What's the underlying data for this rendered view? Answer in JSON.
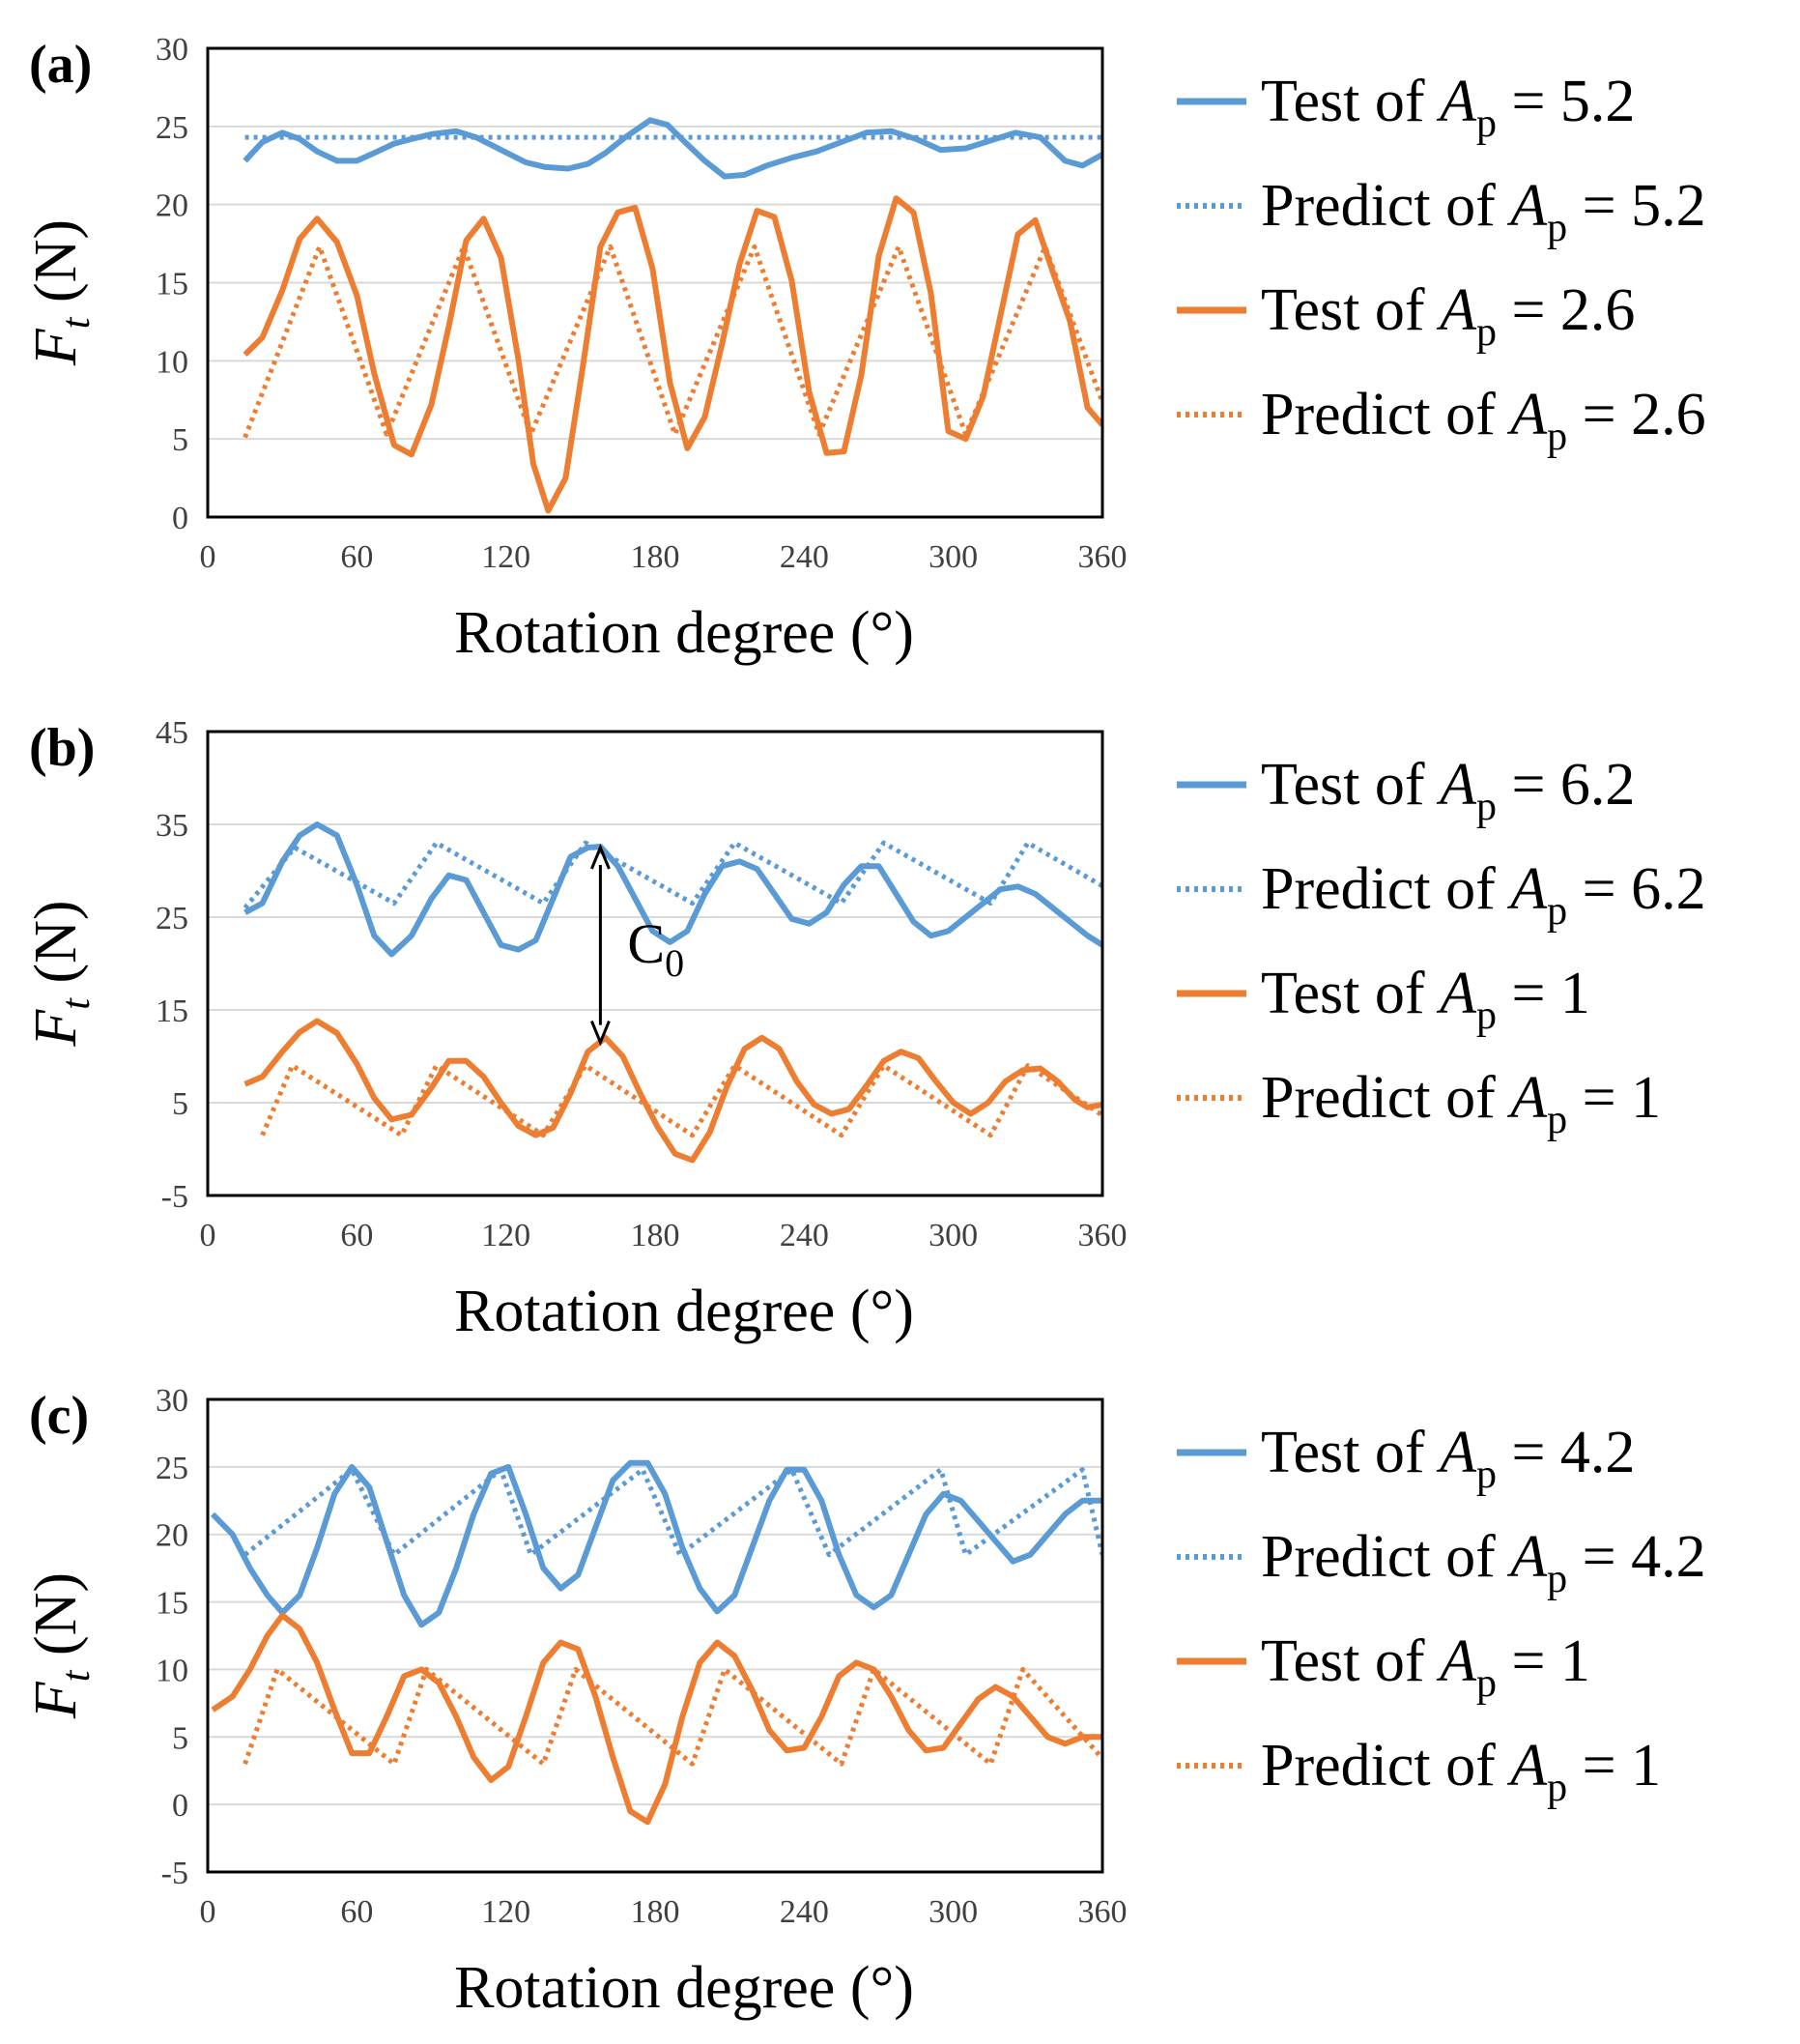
{
  "colors": {
    "blue": "#5B9BD5",
    "orange": "#ED7D31",
    "grid": "#d9d9d9",
    "frame": "#000000"
  },
  "chart_data": [
    {
      "type": "line",
      "panel_label": "(a)",
      "xlabel": "Rotation degree (°)",
      "ylabel_main": "F",
      "ylabel_sub": "t",
      "ylabel_unit": "(N)",
      "xlim": [
        0,
        360
      ],
      "ylim": [
        0,
        30
      ],
      "xticks": [
        0,
        60,
        120,
        180,
        240,
        300,
        360
      ],
      "yticks": [
        0,
        5,
        10,
        15,
        20,
        25,
        30
      ],
      "grid": "horizontal",
      "legend_position": "right",
      "series": [
        {
          "name_prefix": "Test of ",
          "name_var": "A",
          "name_sub": "p",
          "name_suffix": " = 5.2",
          "color": "#5B9BD5",
          "style": "solid",
          "x": [
            15,
            22,
            30,
            37,
            44,
            52,
            60,
            67,
            75,
            82,
            90,
            100,
            108,
            118,
            128,
            136,
            145,
            153,
            160,
            168,
            178,
            185,
            192,
            200,
            208,
            216,
            225,
            235,
            245,
            255,
            265,
            275,
            285,
            295,
            305,
            315,
            325,
            335,
            345,
            352,
            360
          ],
          "y": [
            22.8,
            24,
            24.6,
            24.2,
            23.4,
            22.8,
            22.8,
            23.3,
            23.9,
            24.2,
            24.5,
            24.7,
            24.3,
            23.5,
            22.7,
            22.4,
            22.3,
            22.6,
            23.3,
            24.3,
            25.4,
            25.1,
            24,
            22.8,
            21.8,
            21.9,
            22.5,
            23,
            23.4,
            24,
            24.6,
            24.7,
            24.2,
            23.5,
            23.6,
            24.1,
            24.6,
            24.3,
            22.8,
            22.5,
            23.2
          ]
        },
        {
          "name_prefix": "Predict of ",
          "name_var": "A",
          "name_sub": "p",
          "name_suffix": " = 5.2",
          "color": "#5B9BD5",
          "style": "dotted",
          "x": [
            15,
            360
          ],
          "y": [
            24.3,
            24.3
          ]
        },
        {
          "name_prefix": "Test of ",
          "name_var": "A",
          "name_sub": "p",
          "name_suffix": " = 2.6",
          "color": "#ED7D31",
          "style": "solid",
          "x": [
            15,
            22,
            30,
            37,
            44,
            52,
            60,
            67,
            75,
            82,
            90,
            97,
            104,
            111,
            118,
            125,
            131,
            137,
            144,
            151,
            158,
            165,
            172,
            179,
            186,
            193,
            200,
            207,
            214,
            221,
            228,
            235,
            242,
            249,
            256,
            263,
            270,
            277,
            284,
            291,
            298,
            305,
            312,
            319,
            326,
            333,
            340,
            347,
            354,
            360
          ],
          "y": [
            10.4,
            11.5,
            14.5,
            17.8,
            19.1,
            17.6,
            14.2,
            9.2,
            4.6,
            4,
            7.2,
            12.2,
            17.7,
            19.1,
            16.6,
            10.1,
            3.4,
            0.4,
            2.5,
            9.7,
            17.3,
            19.5,
            19.8,
            15.9,
            8.6,
            4.4,
            6.4,
            11.1,
            16.2,
            19.6,
            19.2,
            15.1,
            8,
            4.1,
            4.2,
            9.1,
            16.7,
            20.4,
            19.5,
            14.3,
            5.5,
            5,
            7.7,
            12.9,
            18.1,
            19,
            15.7,
            12.5,
            7,
            5.9
          ]
        },
        {
          "name_prefix": "Predict of ",
          "name_var": "A",
          "name_sub": "p",
          "name_suffix": " = 2.6",
          "color": "#ED7D31",
          "style": "dotted",
          "x": [
            15,
            45,
            72,
            103,
            130,
            162,
            188,
            220,
            246,
            278,
            305,
            337,
            362
          ],
          "y": [
            5.1,
            17.3,
            5.3,
            17.3,
            5.3,
            17.3,
            5.3,
            17.3,
            5.3,
            17.3,
            5.3,
            17.3,
            6.5
          ]
        }
      ]
    },
    {
      "type": "line",
      "panel_label": "(b)",
      "xlabel": "Rotation degree (°)",
      "ylabel_main": "F",
      "ylabel_sub": "t",
      "ylabel_unit": "(N)",
      "xlim": [
        0,
        360
      ],
      "ylim": [
        -5,
        45
      ],
      "xticks": [
        0,
        60,
        120,
        180,
        240,
        300,
        360
      ],
      "yticks": [
        -5,
        5,
        15,
        25,
        35,
        45
      ],
      "grid": "horizontal",
      "legend_position": "right",
      "annotation": {
        "text": "C",
        "sub": "0",
        "arrow_x": 158,
        "arrow_y_top": 32.5,
        "arrow_y_bottom": 11.5
      },
      "series": [
        {
          "name_prefix": "Test of ",
          "name_var": "A",
          "name_sub": "p",
          "name_suffix": " = 6.2",
          "color": "#5B9BD5",
          "style": "solid",
          "x": [
            15,
            22,
            30,
            37,
            44,
            52,
            60,
            67,
            74,
            82,
            90,
            97,
            104,
            111,
            118,
            125,
            132,
            139,
            146,
            153,
            158,
            165,
            172,
            179,
            186,
            193,
            200,
            207,
            214,
            221,
            228,
            235,
            242,
            249,
            256,
            263,
            270,
            277,
            284,
            291,
            298,
            305,
            312,
            319,
            326,
            333,
            340,
            347,
            354,
            360
          ],
          "y": [
            25.5,
            26.5,
            31,
            33.8,
            35,
            33.8,
            28.5,
            23,
            21,
            23,
            27,
            29.5,
            29,
            25.5,
            22,
            21.5,
            22.5,
            27,
            31.5,
            32.5,
            32.6,
            30.5,
            27,
            23.5,
            22.3,
            23.5,
            27.5,
            30.5,
            31,
            30.2,
            27.5,
            24.8,
            24.3,
            25.5,
            28.5,
            30.5,
            30.5,
            27.5,
            24.5,
            23,
            23.5,
            25,
            26.5,
            28,
            28.3,
            27.5,
            26,
            24.5,
            23,
            22
          ]
        },
        {
          "name_prefix": "Predict of ",
          "name_var": "A",
          "name_sub": "p",
          "name_suffix": " = 6.2",
          "color": "#5B9BD5",
          "style": "dotted",
          "x": [
            15,
            35,
            75,
            92,
            135,
            152,
            195,
            212,
            255,
            272,
            315,
            330,
            372
          ],
          "y": [
            26,
            32.5,
            26.5,
            33,
            26.5,
            33,
            26.5,
            33,
            26.5,
            33,
            26.5,
            33,
            26.5
          ]
        },
        {
          "name_prefix": "Test of ",
          "name_var": "A",
          "name_sub": "p",
          "name_suffix": " = 1",
          "color": "#ED7D31",
          "style": "solid",
          "x": [
            15,
            22,
            30,
            37,
            44,
            52,
            60,
            67,
            74,
            82,
            90,
            97,
            104,
            111,
            118,
            125,
            132,
            139,
            146,
            153,
            160,
            167,
            174,
            181,
            188,
            195,
            202,
            209,
            216,
            223,
            230,
            237,
            244,
            251,
            258,
            265,
            272,
            279,
            286,
            293,
            300,
            307,
            314,
            321,
            328,
            335,
            342,
            349,
            354,
            360
          ],
          "y": [
            7,
            7.8,
            10.5,
            12.6,
            13.8,
            12.5,
            9.2,
            5.5,
            3.2,
            3.7,
            6.6,
            9.5,
            9.5,
            7.8,
            5,
            2.5,
            1.5,
            2.3,
            6,
            10.5,
            12,
            10,
            6,
            2.4,
            -0.5,
            -1.2,
            1.8,
            6.8,
            10.8,
            12,
            10.8,
            7.3,
            4.8,
            3.8,
            4.3,
            6.8,
            9.5,
            10.5,
            9.8,
            7.3,
            5,
            3.8,
            5,
            7.3,
            8.5,
            8.7,
            7.3,
            5.3,
            4.5,
            4.8
          ]
        },
        {
          "name_prefix": "Predict of ",
          "name_var": "A",
          "name_sub": "p",
          "name_suffix": " = 1",
          "color": "#ED7D31",
          "style": "dotted",
          "x": [
            22,
            34,
            78,
            92,
            135,
            152,
            195,
            212,
            255,
            272,
            315,
            330,
            372
          ],
          "y": [
            1.5,
            9,
            1.5,
            9,
            1.5,
            9,
            1.5,
            9,
            1.5,
            9,
            1.5,
            9,
            1.5
          ]
        }
      ]
    },
    {
      "type": "line",
      "panel_label": "(c)",
      "xlabel": "Rotation degree (°)",
      "ylabel_main": "F",
      "ylabel_sub": "t",
      "ylabel_unit": "(N)",
      "xlim": [
        0,
        360
      ],
      "ylim": [
        -5,
        30
      ],
      "xticks": [
        0,
        60,
        120,
        180,
        240,
        300,
        360
      ],
      "yticks": [
        -5,
        0,
        5,
        10,
        15,
        20,
        25,
        30
      ],
      "grid": "horizontal",
      "legend_position": "right",
      "series": [
        {
          "name_prefix": "Test of ",
          "name_var": "A",
          "name_sub": "p",
          "name_suffix": " = 4.2",
          "color": "#5B9BD5",
          "style": "solid",
          "x": [
            2,
            10,
            17,
            24,
            30,
            37,
            44,
            51,
            58,
            65,
            72,
            79,
            86,
            93,
            100,
            107,
            114,
            121,
            128,
            135,
            142,
            149,
            156,
            163,
            170,
            177,
            184,
            191,
            198,
            205,
            212,
            219,
            226,
            233,
            240,
            247,
            254,
            261,
            268,
            275,
            282,
            289,
            296,
            303,
            310,
            317,
            324,
            331,
            338,
            345,
            352,
            360
          ],
          "y": [
            21.5,
            20,
            17.5,
            15.5,
            14.2,
            15.5,
            19,
            23,
            25,
            23.5,
            19.5,
            15.5,
            13.3,
            14.2,
            17.5,
            21.5,
            24.5,
            25,
            21.5,
            17.5,
            16,
            17,
            20.5,
            24,
            25.3,
            25.3,
            23,
            19,
            16,
            14.3,
            15.5,
            19,
            22.5,
            24.8,
            24.8,
            22.5,
            18.5,
            15.5,
            14.6,
            15.5,
            18.5,
            21.5,
            23,
            22.5,
            21,
            19.5,
            18,
            18.5,
            20,
            21.5,
            22.5,
            22.5
          ]
        },
        {
          "name_prefix": "Predict of ",
          "name_var": "A",
          "name_sub": "p",
          "name_suffix": " = 4.2",
          "color": "#5B9BD5",
          "style": "dotted",
          "x": [
            15,
            58,
            75,
            118,
            130,
            175,
            190,
            235,
            250,
            295,
            305,
            352,
            360
          ],
          "y": [
            18.5,
            24.8,
            18.5,
            24.8,
            18.5,
            24.8,
            18.5,
            24.8,
            18.5,
            24.8,
            18.5,
            24.8,
            18.5
          ]
        },
        {
          "name_prefix": "Test of ",
          "name_var": "A",
          "name_sub": "p",
          "name_suffix": " = 1",
          "color": "#ED7D31",
          "style": "solid",
          "x": [
            2,
            10,
            17,
            24,
            30,
            37,
            44,
            51,
            58,
            65,
            72,
            79,
            86,
            93,
            100,
            107,
            114,
            121,
            128,
            135,
            142,
            149,
            156,
            163,
            170,
            177,
            184,
            191,
            198,
            205,
            212,
            219,
            226,
            233,
            240,
            247,
            254,
            261,
            268,
            275,
            282,
            289,
            296,
            303,
            310,
            317,
            324,
            331,
            338,
            345,
            352,
            360
          ],
          "y": [
            7,
            8,
            10,
            12.5,
            14,
            13,
            10.5,
            7,
            3.8,
            3.8,
            6.5,
            9.5,
            10,
            9,
            6.5,
            3.5,
            1.8,
            2.8,
            6.5,
            10.5,
            12,
            11.5,
            8,
            3.5,
            -0.5,
            -1.3,
            1.5,
            6.5,
            10.5,
            12,
            11,
            8.5,
            5.5,
            4,
            4.2,
            6.5,
            9.5,
            10.5,
            10,
            8,
            5.5,
            4,
            4.2,
            6,
            7.8,
            8.7,
            8,
            6.5,
            5,
            4.5,
            5,
            5
          ]
        },
        {
          "name_prefix": "Predict of ",
          "name_var": "A",
          "name_sub": "p",
          "name_suffix": " = 1",
          "color": "#ED7D31",
          "style": "dotted",
          "x": [
            15,
            28,
            75,
            88,
            135,
            148,
            195,
            208,
            255,
            268,
            315,
            328,
            362
          ],
          "y": [
            3,
            10,
            3,
            10,
            3,
            10,
            3,
            10,
            3,
            10,
            3,
            10,
            3
          ]
        }
      ]
    }
  ]
}
